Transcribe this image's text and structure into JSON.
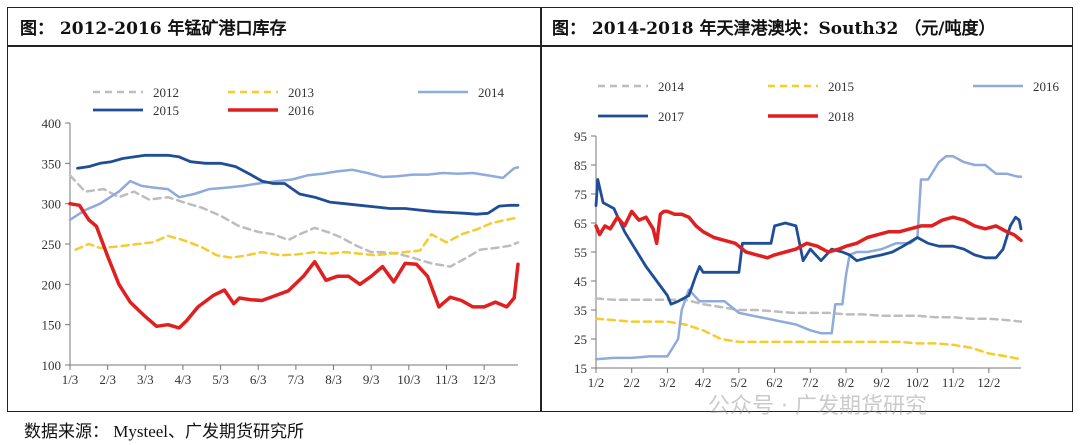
{
  "footer": "数据来源： Mysteel、广发期货研究所",
  "watermark": "公众号 · 广发期货研究",
  "colors": {
    "y2012": "#bdbdbd",
    "y2013": "#f5cb2e",
    "y2014": "#8fabdc",
    "y2015": "#1f4e96",
    "y2016": "#e02020",
    "y2017": "#1f4e96",
    "y2018": "#e02020"
  },
  "chart_data": [
    {
      "type": "line",
      "title": "图： 2012-2016 年锰矿港口库存",
      "xlabel": "",
      "ylabel": "",
      "ylim": [
        100,
        400
      ],
      "yticks": [
        100,
        150,
        200,
        250,
        300,
        350,
        400
      ],
      "xlim": [
        1,
        12.9
      ],
      "xticks": [
        1,
        2,
        3,
        4,
        5,
        6,
        7,
        8,
        9,
        10,
        11,
        12
      ],
      "xtick_labels": [
        "1/3",
        "2/3",
        "3/3",
        "4/3",
        "5/3",
        "6/3",
        "7/3",
        "8/3",
        "9/3",
        "10/3",
        "11/3",
        "12/3"
      ],
      "legend": "top",
      "series": [
        {
          "name": "2012",
          "color": "#bdbdbd",
          "dash": "7,5",
          "width": 2.5,
          "x": [
            1,
            1.4,
            1.9,
            2.3,
            2.7,
            3.1,
            3.6,
            4.0,
            4.5,
            5.0,
            5.5,
            6.0,
            6.4,
            6.8,
            7.1,
            7.5,
            7.9,
            8.2,
            8.6,
            9.0,
            9.3,
            9.7,
            10.1,
            10.6,
            11.1,
            11.5,
            11.9,
            12.3,
            12.7,
            12.9
          ],
          "y": [
            335,
            315,
            318,
            308,
            315,
            305,
            308,
            302,
            295,
            285,
            272,
            265,
            262,
            255,
            262,
            270,
            264,
            258,
            248,
            240,
            240,
            238,
            233,
            226,
            222,
            232,
            243,
            245,
            248,
            252
          ]
        },
        {
          "name": "2013",
          "color": "#f5cb2e",
          "dash": "7,5",
          "width": 2.5,
          "x": [
            1.15,
            1.5,
            1.8,
            2.3,
            2.8,
            3.2,
            3.6,
            4.0,
            4.5,
            4.9,
            5.3,
            5.7,
            6.1,
            6.6,
            7.0,
            7.5,
            7.9,
            8.3,
            8.7,
            9.1,
            9.5,
            9.9,
            10.3,
            10.6,
            11.0,
            11.4,
            11.8,
            12.2,
            12.6,
            12.9
          ],
          "y": [
            243,
            250,
            245,
            247,
            250,
            252,
            260,
            255,
            246,
            236,
            233,
            236,
            240,
            236,
            237,
            240,
            238,
            240,
            238,
            236,
            238,
            240,
            242,
            262,
            252,
            262,
            268,
            276,
            280,
            283
          ]
        },
        {
          "name": "2014",
          "color": "#8fabdc",
          "dash": "",
          "width": 2.5,
          "x": [
            1,
            1.4,
            1.8,
            2.3,
            2.6,
            2.9,
            3.2,
            3.6,
            3.9,
            4.3,
            4.7,
            5.2,
            5.6,
            6.0,
            6.5,
            6.9,
            7.3,
            7.7,
            8.1,
            8.5,
            8.9,
            9.3,
            9.7,
            10.1,
            10.5,
            10.9,
            11.3,
            11.7,
            12.1,
            12.5,
            12.8,
            12.9
          ],
          "y": [
            280,
            292,
            300,
            315,
            328,
            322,
            320,
            318,
            308,
            312,
            318,
            320,
            322,
            325,
            328,
            330,
            335,
            337,
            340,
            342,
            338,
            333,
            334,
            336,
            336,
            338,
            337,
            338,
            335,
            332,
            344,
            345
          ]
        },
        {
          "name": "2015",
          "color": "#1f4e96",
          "dash": "",
          "width": 2.8,
          "x": [
            1.2,
            1.5,
            1.8,
            2.1,
            2.4,
            2.7,
            3.0,
            3.3,
            3.6,
            3.9,
            4.2,
            4.6,
            5.0,
            5.4,
            5.8,
            6.1,
            6.4,
            6.7,
            7.1,
            7.5,
            7.9,
            8.3,
            8.7,
            9.1,
            9.5,
            9.9,
            10.3,
            10.7,
            11.1,
            11.5,
            11.8,
            12.1,
            12.4,
            12.7,
            12.9
          ],
          "y": [
            344,
            346,
            350,
            352,
            356,
            358,
            360,
            360,
            360,
            358,
            352,
            350,
            350,
            346,
            336,
            328,
            325,
            325,
            312,
            308,
            302,
            300,
            298,
            296,
            294,
            294,
            292,
            290,
            289,
            288,
            287,
            288,
            297,
            298,
            298
          ]
        },
        {
          "name": "2016",
          "color": "#e02020",
          "dash": "",
          "width": 3.5,
          "x": [
            1,
            1.25,
            1.5,
            1.7,
            2.0,
            2.3,
            2.6,
            3.0,
            3.3,
            3.6,
            3.9,
            4.1,
            4.4,
            4.8,
            5.1,
            5.35,
            5.5,
            5.8,
            6.1,
            6.4,
            6.8,
            7.2,
            7.5,
            7.8,
            8.1,
            8.4,
            8.7,
            9.0,
            9.3,
            9.6,
            9.9,
            10.2,
            10.5,
            10.8,
            11.1,
            11.4,
            11.7,
            12.0,
            12.3,
            12.6,
            12.8,
            12.9
          ],
          "y": [
            300,
            298,
            280,
            272,
            235,
            200,
            178,
            160,
            148,
            150,
            146,
            155,
            172,
            186,
            193,
            176,
            183,
            181,
            180,
            185,
            192,
            210,
            228,
            205,
            210,
            210,
            200,
            210,
            222,
            203,
            226,
            225,
            210,
            172,
            184,
            180,
            172,
            172,
            178,
            172,
            183,
            225
          ]
        }
      ]
    },
    {
      "type": "line",
      "title": "图： 2014-2018 年天津港澳块：South32 （元/吨度）",
      "xlabel": "",
      "ylabel": "",
      "ylim": [
        15,
        95
      ],
      "yticks": [
        15,
        25,
        35,
        45,
        55,
        65,
        75,
        85,
        95
      ],
      "xlim": [
        1,
        12.9
      ],
      "xticks": [
        1,
        2,
        3,
        4,
        5,
        6,
        7,
        8,
        9,
        10,
        11,
        12
      ],
      "xtick_labels": [
        "1/2",
        "2/2",
        "3/2",
        "4/2",
        "5/2",
        "6/2",
        "7/2",
        "8/2",
        "9/2",
        "10/2",
        "11/2",
        "12/2"
      ],
      "legend": "top",
      "series": [
        {
          "name": "2014",
          "color": "#bdbdbd",
          "dash": "7,5",
          "width": 2.5,
          "x": [
            1,
            1.5,
            2.0,
            2.5,
            3.0,
            3.5,
            4.0,
            4.5,
            5.0,
            5.5,
            6.0,
            6.5,
            7.0,
            7.5,
            8.0,
            8.5,
            9.0,
            9.5,
            10.0,
            10.5,
            11.0,
            11.5,
            12.0,
            12.5,
            12.9
          ],
          "y": [
            39,
            38.5,
            38.5,
            38.5,
            38.5,
            38.5,
            37,
            36,
            35,
            35,
            34.5,
            34,
            34,
            34,
            33.5,
            33.5,
            33,
            33,
            33,
            32.5,
            32.5,
            32,
            32,
            31.5,
            31
          ]
        },
        {
          "name": "2015",
          "color": "#f5cb2e",
          "dash": "7,5",
          "width": 2.5,
          "x": [
            1,
            1.5,
            2.0,
            2.5,
            3.0,
            3.5,
            4.0,
            4.5,
            5.0,
            5.5,
            6.0,
            6.5,
            7.0,
            7.5,
            8.0,
            8.5,
            9.0,
            9.5,
            10.0,
            10.5,
            11.0,
            11.5,
            12.0,
            12.5,
            12.9
          ],
          "y": [
            32,
            31.5,
            31,
            31,
            31,
            30,
            28,
            25,
            24,
            24,
            24,
            24,
            24,
            24,
            24,
            24,
            24,
            24,
            23.5,
            23.5,
            23,
            22,
            20,
            19,
            18
          ]
        },
        {
          "name": "2016",
          "color": "#8fabdc",
          "dash": "",
          "width": 2.5,
          "x": [
            1,
            1.5,
            2.0,
            2.5,
            2.8,
            3.0,
            3.3,
            3.4,
            3.6,
            3.9,
            4.2,
            4.6,
            5.0,
            5.4,
            5.8,
            6.2,
            6.6,
            7.0,
            7.3,
            7.6,
            7.7,
            7.9,
            8.0,
            8.1,
            8.3,
            8.6,
            9.0,
            9.4,
            9.8,
            10.0,
            10.1,
            10.3,
            10.6,
            10.8,
            11.0,
            11.3,
            11.6,
            11.9,
            12.2,
            12.5,
            12.8,
            12.9
          ],
          "y": [
            18,
            18.5,
            18.5,
            19,
            19,
            19,
            25,
            35,
            42,
            38,
            38,
            38,
            34,
            33,
            32,
            31,
            30,
            28,
            27,
            27,
            37,
            37,
            47,
            54,
            55,
            55,
            56,
            58,
            58,
            60,
            80,
            80,
            86,
            88,
            88,
            86,
            85,
            85,
            82,
            82,
            81,
            81
          ]
        },
        {
          "name": "2017",
          "color": "#1f4e96",
          "dash": "",
          "width": 2.8,
          "x": [
            1,
            1.05,
            1.2,
            1.5,
            1.8,
            2.1,
            2.4,
            2.7,
            3.0,
            3.1,
            3.3,
            3.6,
            3.8,
            3.9,
            4.0,
            4.3,
            4.6,
            5.0,
            5.1,
            5.4,
            5.6,
            5.9,
            6.0,
            6.3,
            6.6,
            6.8,
            7.0,
            7.3,
            7.6,
            7.9,
            8.1,
            8.3,
            8.6,
            9.0,
            9.3,
            9.6,
            10.0,
            10.3,
            10.6,
            11.0,
            11.3,
            11.6,
            11.9,
            12.2,
            12.4,
            12.6,
            12.75,
            12.85,
            12.9
          ],
          "y": [
            71,
            80,
            72,
            70,
            62,
            56,
            50,
            45,
            40,
            37,
            38,
            40,
            47,
            50,
            48,
            48,
            48,
            48,
            58,
            58,
            58,
            58,
            64,
            65,
            64,
            52,
            56,
            52,
            56,
            55,
            54,
            52,
            53,
            54,
            55,
            57,
            60,
            58,
            57,
            57,
            56,
            54,
            53,
            53,
            56,
            64,
            67,
            66,
            63
          ]
        },
        {
          "name": "2018",
          "color": "#e02020",
          "dash": "",
          "width": 3.5,
          "x": [
            1,
            1.1,
            1.25,
            1.4,
            1.6,
            1.8,
            2.0,
            2.2,
            2.4,
            2.6,
            2.7,
            2.8,
            2.9,
            3.0,
            3.2,
            3.4,
            3.6,
            3.8,
            4.0,
            4.3,
            4.6,
            4.9,
            5.2,
            5.5,
            5.8,
            6.0,
            6.3,
            6.6,
            6.9,
            7.2,
            7.5,
            7.8,
            8.0,
            8.3,
            8.6,
            8.9,
            9.2,
            9.5,
            9.8,
            10.1,
            10.4,
            10.7,
            11.0,
            11.3,
            11.6,
            11.9,
            12.2,
            12.5,
            12.7,
            12.9
          ],
          "y": [
            64,
            61,
            64,
            63,
            67,
            64,
            69,
            66,
            67,
            63,
            58,
            68,
            69,
            69,
            68,
            68,
            67,
            64,
            62,
            60,
            59,
            58,
            55,
            54,
            53,
            54,
            55,
            56,
            58,
            57,
            55,
            56,
            57,
            58,
            60,
            61,
            62,
            62,
            63,
            64,
            64,
            66,
            67,
            66,
            64,
            63,
            64,
            62,
            61,
            59
          ]
        }
      ]
    }
  ]
}
